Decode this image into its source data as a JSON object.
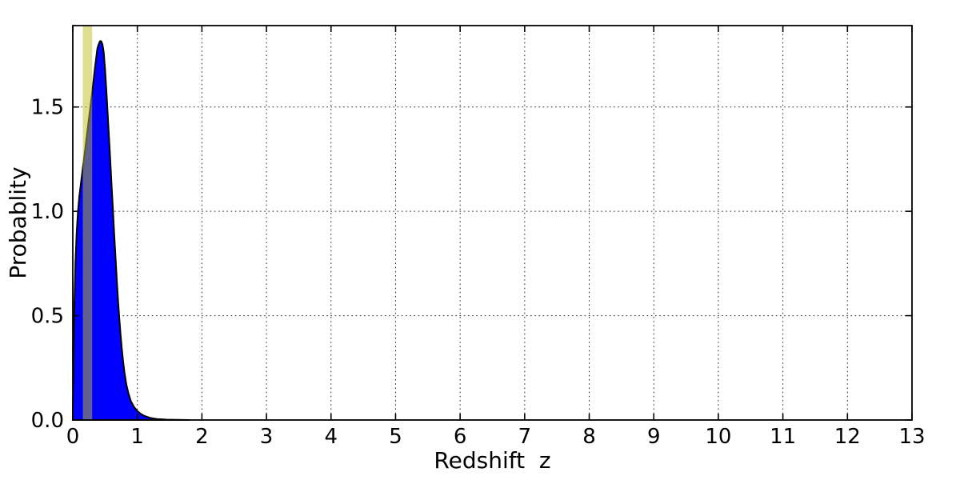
{
  "chart_data": {
    "type": "area",
    "title": "",
    "xlabel": "Redshift  z",
    "ylabel": "Probablity",
    "xlim": [
      0,
      13
    ],
    "ylim": [
      0,
      1.89
    ],
    "xticks": [
      0,
      1,
      2,
      3,
      4,
      5,
      6,
      7,
      8,
      9,
      10,
      11,
      12,
      13
    ],
    "xtick_labels": [
      "0",
      "1",
      "2",
      "3",
      "4",
      "5",
      "6",
      "7",
      "8",
      "9",
      "10",
      "11",
      "12",
      "13"
    ],
    "yticks": [
      0.0,
      0.5,
      1.0,
      1.5
    ],
    "ytick_labels": [
      "0.0",
      "0.5",
      "1.0",
      "1.5"
    ],
    "grid": {
      "visible": true,
      "linestyle": "dotted",
      "color": "#000000",
      "x_lines": [
        1,
        2,
        3,
        4,
        5,
        6,
        7,
        8,
        9,
        10,
        11,
        12
      ],
      "y_lines": [
        0.5,
        1.0,
        1.5
      ]
    },
    "series": [
      {
        "name": "redshift-probability-distribution",
        "type": "filled-curve",
        "fill_color": "#0000ff",
        "edge_color": "#000000",
        "x": [
          0.0,
          0.01,
          0.02,
          0.04,
          0.06,
          0.08,
          0.1,
          0.14,
          0.18,
          0.22,
          0.26,
          0.3,
          0.34,
          0.38,
          0.4,
          0.42,
          0.44,
          0.46,
          0.48,
          0.5,
          0.52,
          0.54,
          0.56,
          0.58,
          0.6,
          0.62,
          0.64,
          0.66,
          0.68,
          0.7,
          0.72,
          0.74,
          0.76,
          0.78,
          0.8,
          0.83,
          0.86,
          0.9,
          0.95,
          1.0,
          1.05,
          1.1,
          1.2,
          1.3,
          1.45,
          1.6,
          1.8
        ],
        "y": [
          0.0,
          0.25,
          0.5,
          0.75,
          0.9,
          1.0,
          1.07,
          1.17,
          1.27,
          1.37,
          1.47,
          1.57,
          1.68,
          1.78,
          1.8,
          1.815,
          1.815,
          1.8,
          1.76,
          1.68,
          1.58,
          1.47,
          1.36,
          1.25,
          1.13,
          1.02,
          0.9,
          0.79,
          0.68,
          0.58,
          0.49,
          0.41,
          0.34,
          0.28,
          0.23,
          0.17,
          0.13,
          0.09,
          0.062,
          0.043,
          0.03,
          0.021,
          0.01,
          0.005,
          0.002,
          0.001,
          0.0
        ],
        "peak": {
          "z": 0.42,
          "probability": 1.81
        }
      }
    ],
    "marker_band": {
      "name": "vertical-highlight-band",
      "z_from": 0.155,
      "z_to": 0.3,
      "color": "#bdbd21",
      "alpha": 0.5
    },
    "legend": null
  },
  "colors": {
    "background": "#ffffff",
    "frame": "#000000",
    "curve_fill": "#0000ff",
    "band_fill": "#bdbd21"
  }
}
